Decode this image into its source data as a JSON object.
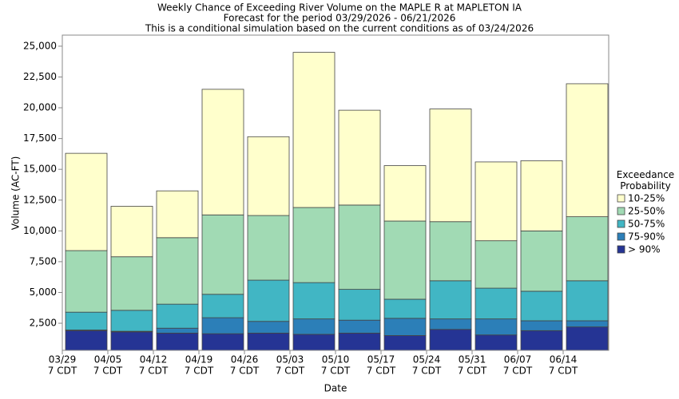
{
  "chart_data": {
    "type": "stacked-bar",
    "title": "Weekly Chance of Exceeding River Volume on the MAPLE R at MAPLETON IA",
    "subtitle": "Forecast for the period 03/29/2026 - 06/21/2026",
    "note": "This is a conditional simulation based on the current conditions as of 03/24/2026",
    "y_label": "Volume (AC-FT)",
    "x_label": "Date",
    "legend_title": "Exceedance Probability",
    "categories": [
      "03/29",
      "04/05",
      "04/12",
      "04/19",
      "04/26",
      "05/03",
      "05/10",
      "05/17",
      "05/24",
      "05/31",
      "06/07",
      "06/14"
    ],
    "category_sublabels": [
      "7 CDT",
      "7 CDT",
      "7 CDT",
      "7 CDT",
      "7 CDT",
      "7 CDT",
      "7 CDT",
      "7 CDT",
      "7 CDT",
      "7 CDT",
      "7 CDT",
      "7 CDT"
    ],
    "series": [
      {
        "name": "> 90%",
        "color": "#253494",
        "values": [
          1900,
          1800,
          1700,
          1650,
          1700,
          1600,
          1700,
          1500,
          2000,
          1550,
          1900,
          2200
        ]
      },
      {
        "name": "75-90%",
        "color": "#2c7fb8",
        "values": [
          50,
          50,
          400,
          1300,
          950,
          1250,
          1050,
          1400,
          850,
          1300,
          800,
          500
        ]
      },
      {
        "name": "50-75%",
        "color": "#41b6c4",
        "values": [
          1450,
          1700,
          1950,
          1900,
          3350,
          2950,
          2500,
          1550,
          3100,
          2500,
          2400,
          3250
        ]
      },
      {
        "name": "25-50%",
        "color": "#a1dab4",
        "values": [
          5000,
          4350,
          5400,
          6450,
          5250,
          6100,
          6850,
          6350,
          4800,
          3850,
          4900,
          5200
        ]
      },
      {
        "name": "10-25%",
        "color": "#ffffcc",
        "values": [
          7900,
          4100,
          3800,
          10200,
          6400,
          12600,
          7700,
          4500,
          9150,
          6400,
          5700,
          10800
        ]
      }
    ],
    "ylim": [
      300,
      25900
    ],
    "yticks": [
      {
        "value": 2500,
        "label": "2,500"
      },
      {
        "value": 5000,
        "label": "5,000"
      },
      {
        "value": 7500,
        "label": "7,500"
      },
      {
        "value": 10000,
        "label": "10,000"
      },
      {
        "value": 12500,
        "label": "12,500"
      },
      {
        "value": 15000,
        "label": "15,000"
      },
      {
        "value": 17500,
        "label": "17,500"
      },
      {
        "value": 20000,
        "label": "20,000"
      },
      {
        "value": 22500,
        "label": "22,500"
      },
      {
        "value": 25000,
        "label": "25,000"
      }
    ],
    "grid": false
  }
}
